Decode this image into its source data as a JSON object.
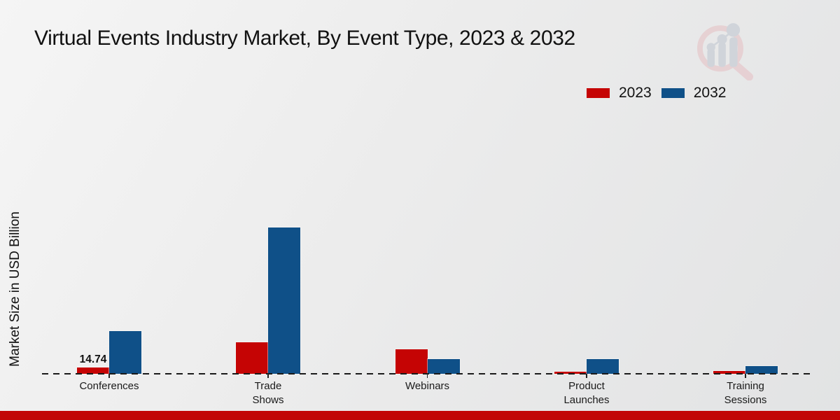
{
  "title": "Virtual Events Industry Market, By Event Type, 2023 & 2032",
  "y_axis_label": "Market Size in USD Billion",
  "legend": {
    "items": [
      {
        "label": "2023",
        "color": "#c50404"
      },
      {
        "label": "2032",
        "color": "#0f5088"
      }
    ]
  },
  "chart_data": {
    "type": "bar",
    "title": "Virtual Events Industry Market, By Event Type, 2023 & 2032",
    "xlabel": "",
    "ylabel": "Market Size in USD Billion",
    "categories": [
      "Conferences",
      "Trade Shows",
      "Webinars",
      "Product Launches",
      "Training Sessions"
    ],
    "category_label_lines": [
      [
        "Conferences"
      ],
      [
        "Trade",
        "Shows"
      ],
      [
        "Webinars"
      ],
      [
        "Product",
        "Launches"
      ],
      [
        "Training",
        "Sessions"
      ]
    ],
    "series": [
      {
        "name": "2023",
        "color": "#c50404",
        "values": [
          14.74,
          74.5,
          57.3,
          4.9,
          6.5
        ]
      },
      {
        "name": "2032",
        "color": "#0f5088",
        "values": [
          99.8,
          342.0,
          34.4,
          35.2,
          17.2
        ]
      }
    ],
    "data_labels": [
      {
        "series": "2023",
        "category": "Conferences",
        "text": "14.74"
      }
    ],
    "ylim": [
      0,
      360
    ],
    "grid": false,
    "axes_hidden": true,
    "baseline_style": "dashed",
    "legend_position": "top-right"
  },
  "colors": {
    "series_2023": "#c50404",
    "series_2032": "#0f5088",
    "baseline": "#1a1a1a",
    "bottom_strip": "#c20606",
    "background_start": "#f5f5f5",
    "background_end": "#e2e3e4",
    "text": "#111111",
    "logo_ring": "#e6cdd0",
    "logo_bars": "#ccd1d8"
  },
  "logo": {
    "name": "market-research-future-watermark"
  }
}
